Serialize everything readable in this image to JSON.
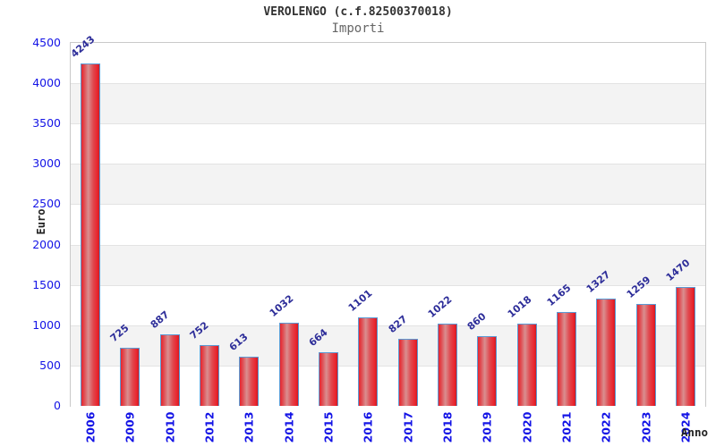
{
  "chart_data": {
    "type": "bar",
    "title": "VEROLENGO (c.f.82500370018)",
    "subtitle": "Importi",
    "xlabel": "Anno",
    "ylabel": "Euro",
    "categories": [
      "2006",
      "2009",
      "2010",
      "2012",
      "2013",
      "2014",
      "2015",
      "2016",
      "2017",
      "2018",
      "2019",
      "2020",
      "2021",
      "2022",
      "2023",
      "2024"
    ],
    "values": [
      4243,
      725,
      887,
      752,
      613,
      1032,
      664,
      1101,
      827,
      1022,
      860,
      1018,
      1165,
      1327,
      1259,
      1470
    ],
    "ylim": [
      0,
      4500
    ],
    "ytick_step": 500,
    "grid": "horizontal-alternating-bands",
    "legend": "none",
    "colors": {
      "bar_fill_edge": "#e8242d",
      "bar_fill_highlight": "#d98f90",
      "bar_border": "#5b9bd5",
      "tick_label": "#1414e6",
      "value_label": "#2d2d99",
      "axis_title": "#222222",
      "band_alt": "#f3f3f3",
      "gridline": "#e3e3e3",
      "plot_border": "#c9c9c9",
      "title_color": "#333333",
      "subtitle_color": "#666666"
    }
  }
}
